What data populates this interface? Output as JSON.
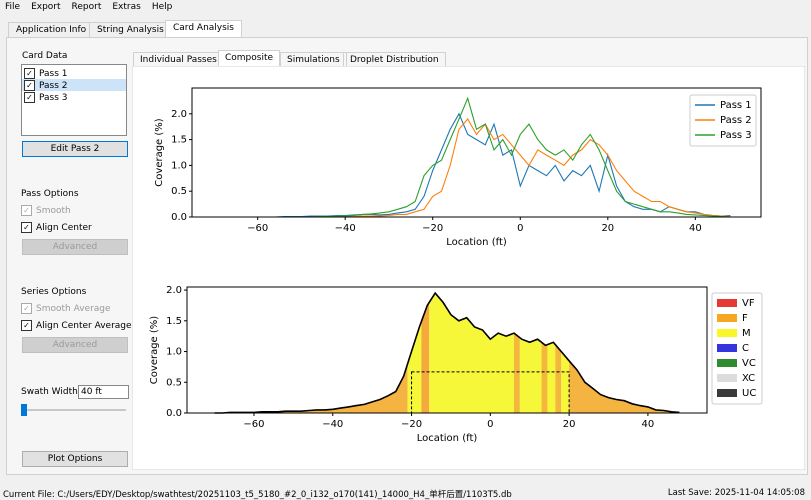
{
  "menu": [
    "File",
    "Export",
    "Report",
    "Extras",
    "Help"
  ],
  "tabs": [
    "Application Info",
    "String Analysis",
    "Card Analysis"
  ],
  "card_data": {
    "title": "Card Data",
    "passes": [
      "Pass 1",
      "Pass 2",
      "Pass 3"
    ],
    "edit_button": "Edit Pass 2"
  },
  "pass_options": {
    "title": "Pass Options",
    "smooth": "Smooth",
    "align": "Align Center",
    "advanced": "Advanced"
  },
  "series_options": {
    "title": "Series Options",
    "smooth": "Smooth Average",
    "align": "Align Center Average",
    "advanced": "Advanced"
  },
  "swath": {
    "label": "Swath Width:",
    "value": "40 ft"
  },
  "plot_options": "Plot Options",
  "subtabs": [
    "Individual Passes",
    "Composite",
    "Simulations",
    "Droplet Distribution"
  ],
  "status": {
    "file": "Current File: C:/Users/EDY/Desktop/swathtest/20251103_t5_5180_#2_0_i132_o170(141)_14000_H4_单杆后置/1103T5.db",
    "save": "Last Save: 2025-11-04 14:05:08"
  },
  "chart_data": [
    {
      "type": "line",
      "xlabel": "Location (ft)",
      "ylabel": "Coverage (%)",
      "xlim": [
        -75,
        55
      ],
      "ylim": [
        0,
        2.5
      ],
      "xticks": [
        {
          "value": -60,
          "label": "−60"
        },
        {
          "value": -40,
          "label": "−40"
        },
        {
          "value": -20,
          "label": "−20"
        },
        0,
        20,
        40
      ],
      "yticks": [
        {
          "value": 0,
          "label": "0.0"
        },
        {
          "value": 0.5,
          "label": "0.5"
        },
        {
          "value": 1,
          "label": "1.0"
        },
        {
          "value": 1.5,
          "label": "1.5"
        },
        {
          "value": 2,
          "label": "2.0"
        }
      ],
      "grid": false,
      "legend_loc": "upper right",
      "x": [
        -70,
        -68,
        -66,
        -64,
        -62,
        -60,
        -58,
        -56,
        -54,
        -52,
        -50,
        -48,
        -46,
        -44,
        -42,
        -40,
        -38,
        -36,
        -34,
        -32,
        -30,
        -28,
        -26,
        -24,
        -22,
        -20,
        -18,
        -16,
        -14,
        -12,
        -10,
        -8,
        -6,
        -4,
        -2,
        0,
        2,
        4,
        6,
        8,
        10,
        12,
        14,
        16,
        18,
        20,
        22,
        24,
        26,
        28,
        30,
        32,
        34,
        36,
        38,
        40,
        42,
        44,
        46,
        48
      ],
      "series": [
        {
          "name": "Pass 1",
          "color": "#1f77b4",
          "values": [
            0,
            0,
            0,
            0,
            0,
            0,
            0,
            0,
            0.01,
            0.01,
            0.01,
            0.02,
            0.02,
            0.02,
            0.03,
            0.03,
            0.04,
            0.05,
            0.05,
            0.04,
            0.05,
            0.08,
            0.1,
            0.15,
            0.4,
            0.9,
            1.3,
            1.7,
            2.0,
            1.6,
            1.5,
            1.4,
            1.8,
            1.2,
            1.3,
            0.6,
            1.0,
            0.9,
            0.8,
            1.0,
            0.7,
            0.9,
            0.8,
            1.0,
            0.5,
            1.2,
            0.6,
            0.3,
            0.2,
            0.15,
            0.15,
            0.1,
            0.2,
            0.15,
            0.1,
            0.1,
            0.05,
            0.03,
            0.02,
            0.03
          ]
        },
        {
          "name": "Pass 2",
          "color": "#ff7f0e",
          "values": [
            0,
            0,
            0,
            0,
            0,
            0,
            0,
            0,
            0,
            0,
            0,
            0,
            0,
            0,
            0.01,
            0.01,
            0.01,
            0.02,
            0.02,
            0.02,
            0.03,
            0.05,
            0.05,
            0.1,
            0.15,
            0.4,
            0.5,
            1.0,
            1.7,
            1.9,
            1.6,
            1.8,
            1.5,
            1.6,
            1.4,
            1.2,
            1.0,
            1.3,
            1.2,
            1.1,
            1.0,
            1.2,
            1.3,
            1.5,
            1.4,
            1.2,
            0.9,
            0.7,
            0.5,
            0.4,
            0.3,
            0.3,
            0.2,
            0.15,
            0.1,
            0.08,
            0.05,
            0.03,
            0.02,
            0.01
          ]
        },
        {
          "name": "Pass 3",
          "color": "#2ca02c",
          "values": [
            0,
            0,
            0,
            0,
            0,
            0,
            0,
            0,
            0,
            0,
            0,
            0,
            0.01,
            0.01,
            0.02,
            0.02,
            0.03,
            0.05,
            0.06,
            0.08,
            0.1,
            0.15,
            0.2,
            0.3,
            0.8,
            1.0,
            1.1,
            1.5,
            1.9,
            2.3,
            1.7,
            1.8,
            1.3,
            1.5,
            1.2,
            1.6,
            1.8,
            1.5,
            1.3,
            1.2,
            1.3,
            1.1,
            1.4,
            1.6,
            1.3,
            0.9,
            0.5,
            0.3,
            0.25,
            0.2,
            0.15,
            0.1,
            0.1,
            0.08,
            0.05,
            0.04,
            0.03,
            0.02,
            0.01,
            0
          ]
        }
      ]
    },
    {
      "type": "area",
      "xlabel": "Location (ft)",
      "ylabel": "Coverage (%)",
      "xlim": [
        -77,
        55
      ],
      "ylim": [
        0,
        2.05
      ],
      "xticks": [
        {
          "value": -60,
          "label": "−60"
        },
        {
          "value": -40,
          "label": "−40"
        },
        {
          "value": -20,
          "label": "−20"
        },
        0,
        20,
        40
      ],
      "yticks": [
        {
          "value": 0,
          "label": "0.0"
        },
        {
          "value": 0.5,
          "label": "0.5"
        },
        {
          "value": 1,
          "label": "1.0"
        },
        {
          "value": 1.5,
          "label": "1.5"
        },
        {
          "value": 2,
          "label": "2.0"
        }
      ],
      "grid": false,
      "legend_loc": "outside right",
      "line_color": "#000000",
      "x": [
        -70,
        -68,
        -66,
        -64,
        -62,
        -60,
        -58,
        -56,
        -54,
        -52,
        -50,
        -48,
        -46,
        -44,
        -42,
        -40,
        -38,
        -36,
        -34,
        -32,
        -30,
        -28,
        -26,
        -24,
        -22,
        -20,
        -18,
        -16,
        -14,
        -12,
        -10,
        -8,
        -6,
        -4,
        -2,
        0,
        2,
        4,
        6,
        8,
        10,
        12,
        14,
        16,
        18,
        20,
        22,
        24,
        26,
        28,
        30,
        32,
        34,
        36,
        38,
        40,
        42,
        44,
        46,
        48
      ],
      "values": [
        0,
        0,
        0.01,
        0.01,
        0.01,
        0.01,
        0.02,
        0.02,
        0.02,
        0.03,
        0.03,
        0.03,
        0.04,
        0.05,
        0.05,
        0.06,
        0.08,
        0.1,
        0.12,
        0.14,
        0.18,
        0.22,
        0.28,
        0.35,
        0.6,
        1.0,
        1.4,
        1.75,
        1.95,
        1.8,
        1.6,
        1.5,
        1.55,
        1.4,
        1.35,
        1.2,
        1.3,
        1.25,
        1.3,
        1.2,
        1.15,
        1.2,
        1.1,
        1.15,
        1.0,
        0.85,
        0.7,
        0.5,
        0.4,
        0.3,
        0.25,
        0.22,
        0.2,
        0.15,
        0.12,
        0.1,
        0.05,
        0.04,
        0.02,
        0.01
      ],
      "fill_regions": [
        {
          "x": [
            -72,
            -21
          ],
          "color": "#f5b342"
        },
        {
          "x": [
            -21,
            -17.5
          ],
          "color": "#f7f73a"
        },
        {
          "x": [
            -17.5,
            -15.5
          ],
          "color": "#f3a93b"
        },
        {
          "x": [
            -15.5,
            6
          ],
          "color": "#f7f73a"
        },
        {
          "x": [
            6,
            7.5
          ],
          "color": "#f3b83b"
        },
        {
          "x": [
            7.5,
            13
          ],
          "color": "#f7f73a"
        },
        {
          "x": [
            13,
            14.5
          ],
          "color": "#f3b83b"
        },
        {
          "x": [
            14.5,
            16.5
          ],
          "color": "#f7f73a"
        },
        {
          "x": [
            16.5,
            18
          ],
          "color": "#f3b83b"
        },
        {
          "x": [
            18,
            20
          ],
          "color": "#f7f73a"
        },
        {
          "x": [
            20,
            50
          ],
          "color": "#f5b342"
        }
      ],
      "swath_box": {
        "x": [
          -20,
          20
        ],
        "y": 0.67
      },
      "classes": [
        {
          "name": "VF",
          "color": "#e53935"
        },
        {
          "name": "F",
          "color": "#f5a623"
        },
        {
          "name": "M",
          "color": "#f7f72a"
        },
        {
          "name": "C",
          "color": "#3535e0"
        },
        {
          "name": "VC",
          "color": "#2e8b2e"
        },
        {
          "name": "XC",
          "color": "#dcdcdc"
        },
        {
          "name": "UC",
          "color": "#3a3a3a"
        }
      ]
    }
  ]
}
